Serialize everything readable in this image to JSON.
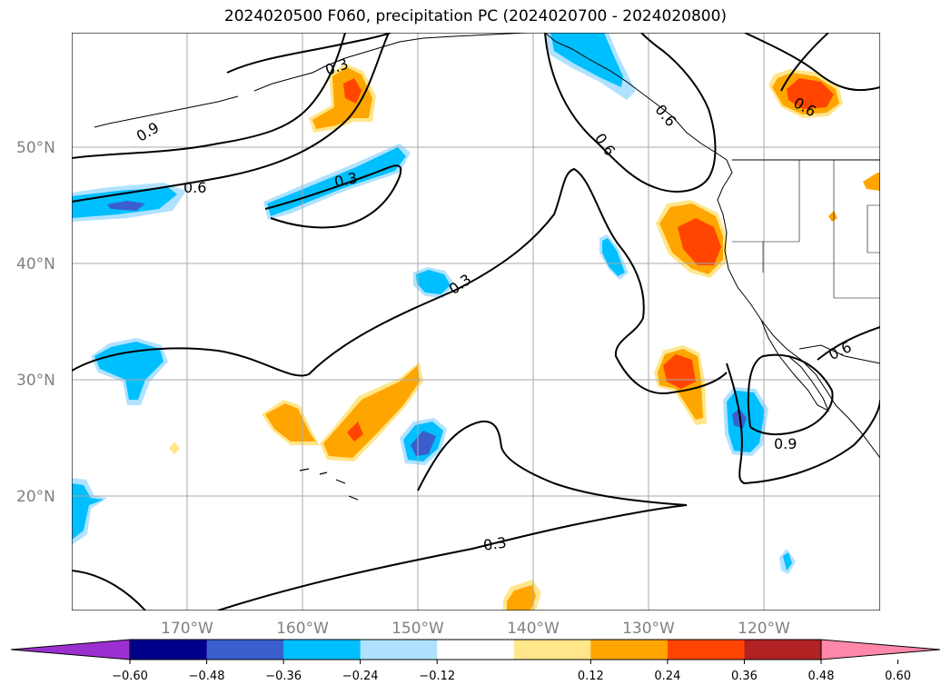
{
  "title": "2024020500 F060, precipitation PC (2024020700 - 2024020800)",
  "map": {
    "lat_labels": [
      "50°N",
      "40°N",
      "30°N",
      "20°N"
    ],
    "lon_labels": [
      "170°W",
      "160°W",
      "150°W",
      "140°W",
      "130°W",
      "120°W"
    ],
    "contour_labels": [
      "0.9",
      "0.3",
      "0.6",
      "0.3",
      "0.6",
      "0.6",
      "0.3",
      "0.3",
      "0.6",
      "0.9",
      "0.6"
    ]
  },
  "colorbar": {
    "ticks": [
      "−0.60",
      "−0.48",
      "−0.36",
      "−0.24",
      "−0.12",
      "0.12",
      "0.24",
      "0.36",
      "0.48",
      "0.60"
    ],
    "colors": [
      "#9b30d0",
      "#00008b",
      "#3a5fcd",
      "#00bfff",
      "#b0e2ff",
      "#ffffff",
      "#ffe68a",
      "#ffa500",
      "#ff4500",
      "#b22222",
      "#ff88aa",
      "#ff88aa"
    ]
  },
  "colors": {
    "neg_strong": "#3a5fcd",
    "neg_mid": "#00bfff",
    "neg_light": "#b0e2ff",
    "pos_light": "#ffe68a",
    "pos_mid": "#ffa500",
    "pos_strong": "#ff4500"
  }
}
